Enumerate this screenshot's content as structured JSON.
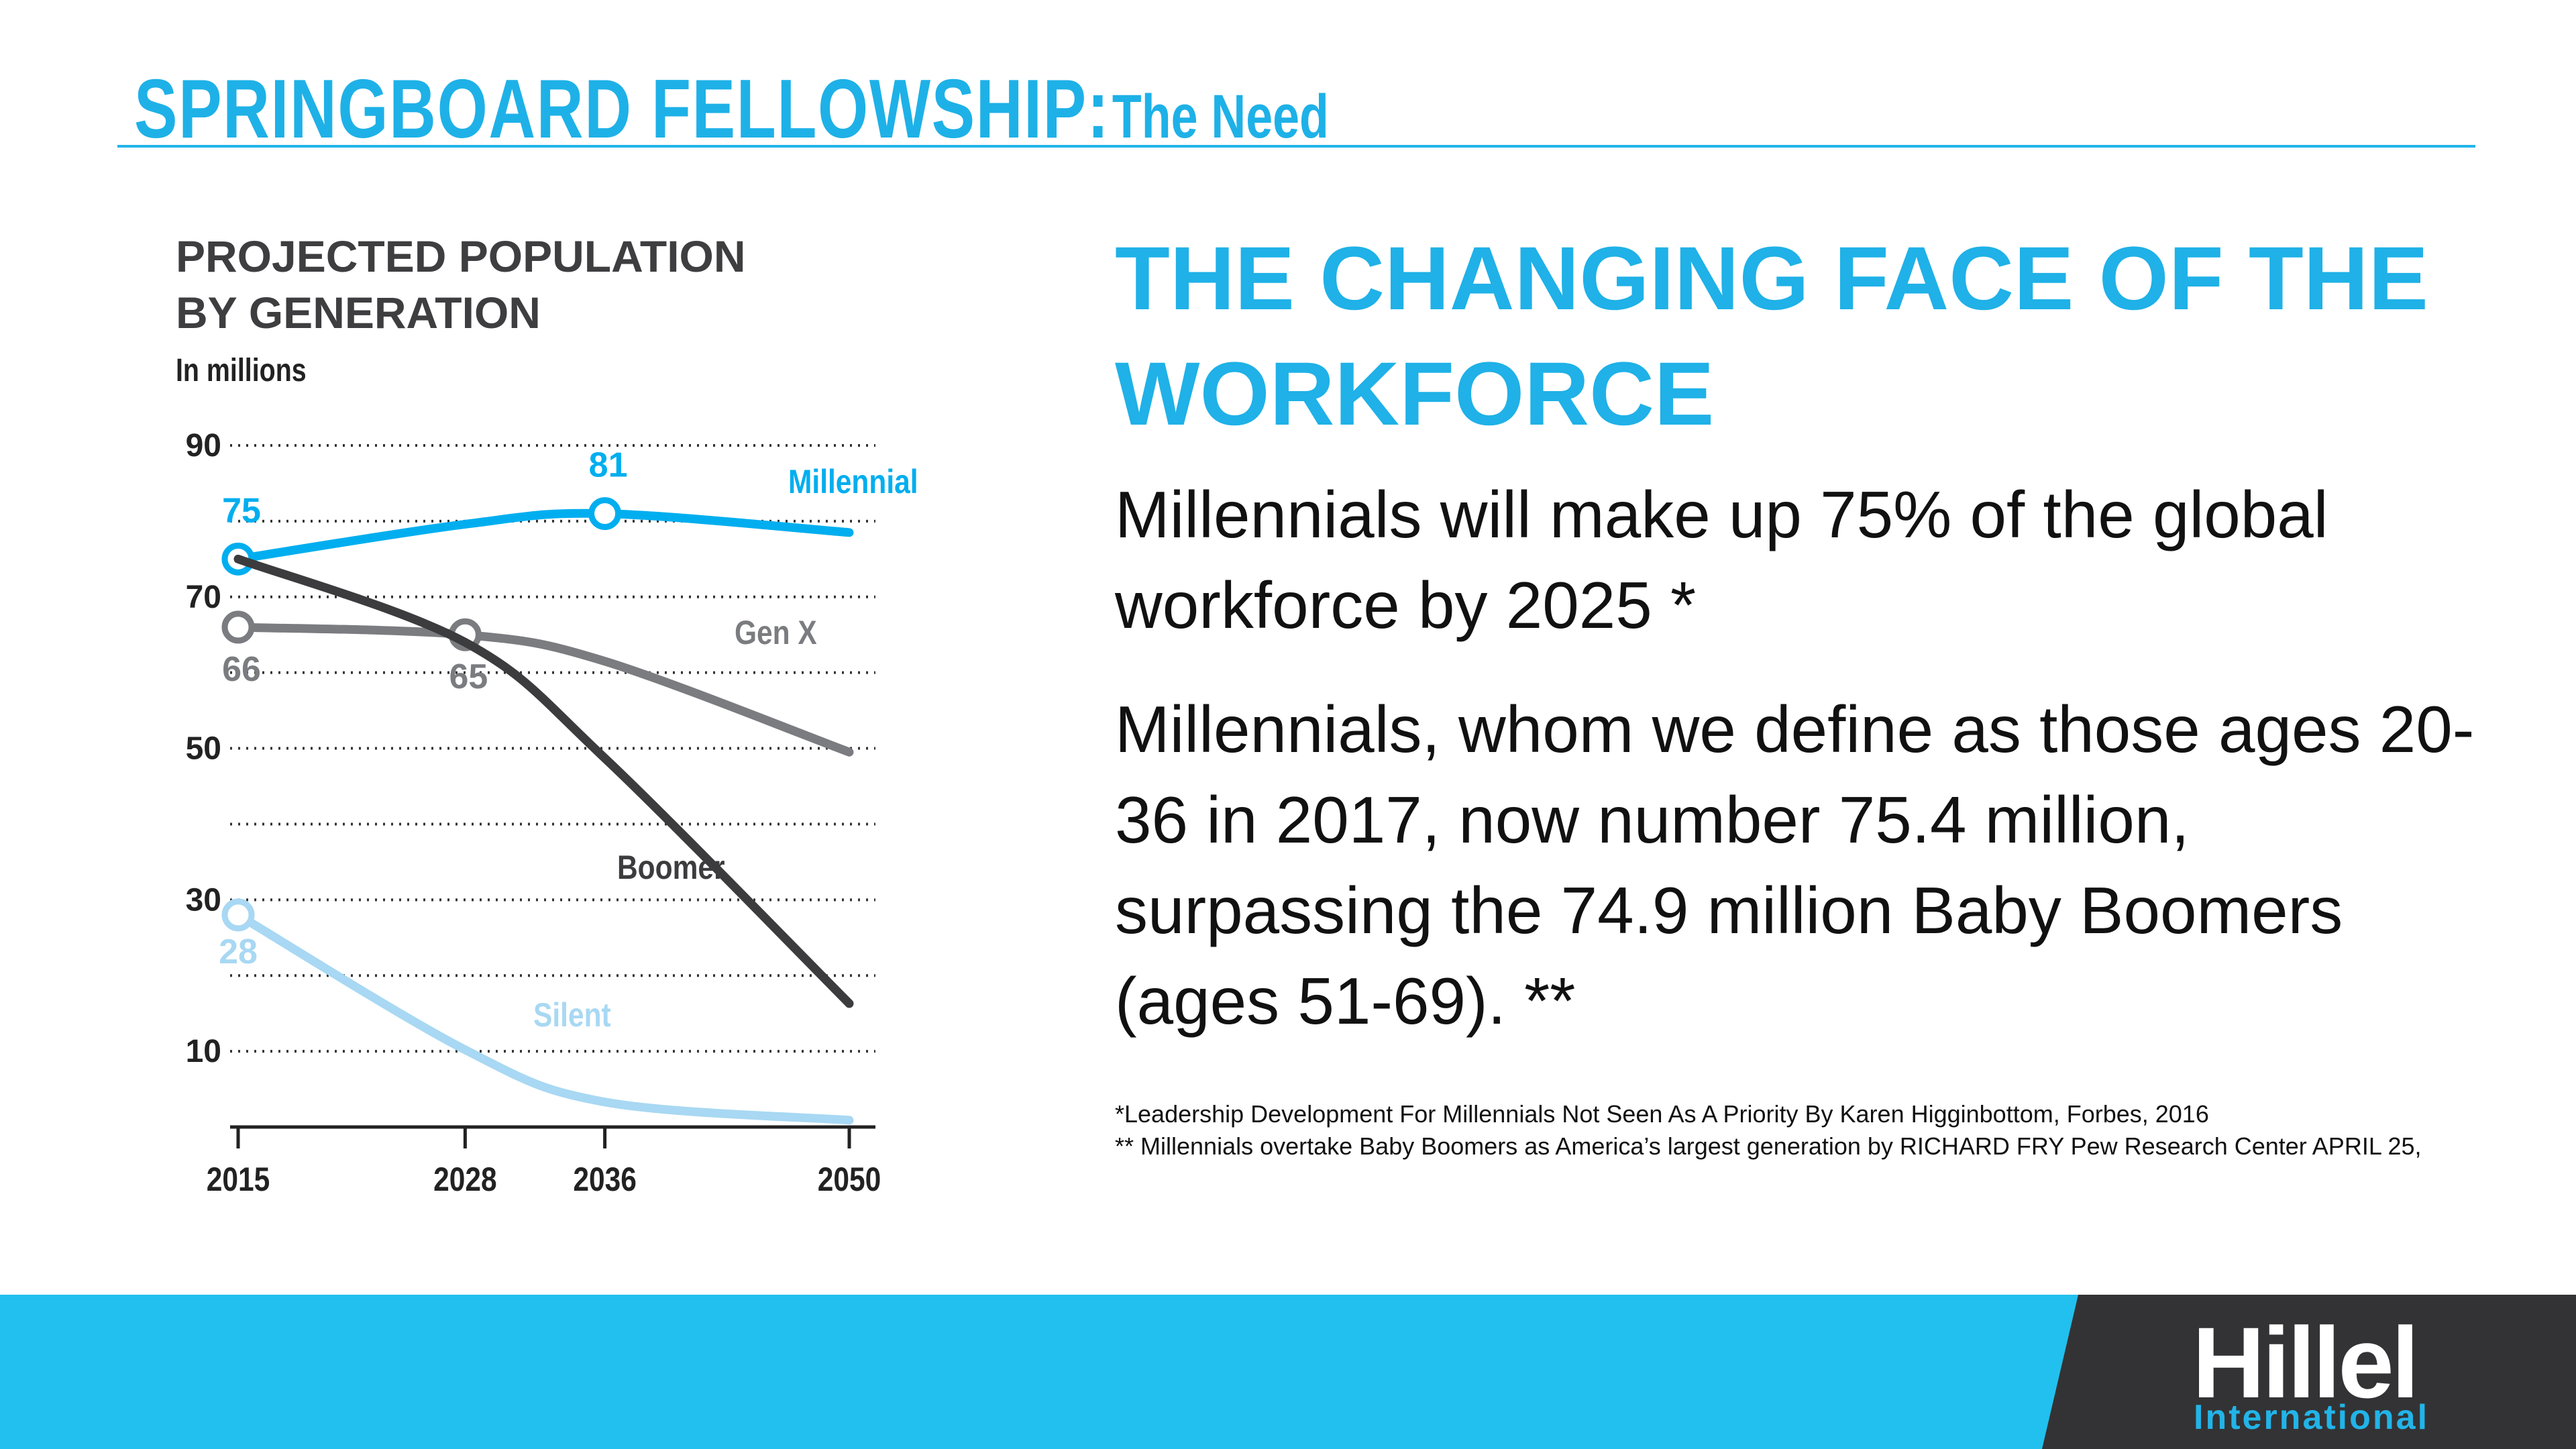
{
  "slide_title": {
    "main": "SPRINGBOARD FELLOWSHIP:",
    "sub": "The Need"
  },
  "chart_data": {
    "type": "line",
    "title": "PROJECTED POPULATION BY GENERATION",
    "title_lines": [
      "PROJECTED POPULATION",
      "BY GENERATION"
    ],
    "ylabel": "In millions",
    "x": [
      2015,
      2028,
      2036,
      2050
    ],
    "x_ticks": [
      "2015",
      "2028",
      "2036",
      "2050"
    ],
    "y_ticks": [
      "90",
      "70",
      "50",
      "30",
      "10"
    ],
    "ylim": [
      0,
      90
    ],
    "grid": "dotted horizontal every 10",
    "legend": "inline labels",
    "series": [
      {
        "name": "Millennial",
        "color": "#00aeef",
        "values": [
          75,
          79.6,
          81,
          78.5
        ],
        "markers": [
          0,
          2
        ],
        "point_labels": [
          {
            "i": 0,
            "text": "75"
          },
          {
            "i": 2,
            "text": "81"
          }
        ]
      },
      {
        "name": "Gen X",
        "color": "#7b7c80",
        "values": [
          66,
          65,
          61.5,
          49.5
        ],
        "markers": [
          0,
          1
        ],
        "point_labels": [
          {
            "i": 0,
            "text": "66"
          },
          {
            "i": 1,
            "text": "65"
          }
        ]
      },
      {
        "name": "Boomer",
        "color": "#3c3c3e",
        "values": [
          75,
          64,
          48.7,
          16.3
        ],
        "markers": [],
        "point_labels": []
      },
      {
        "name": "Silent",
        "color": "#a8d8f3",
        "values": [
          28,
          10.2,
          3.3,
          0.9
        ],
        "markers": [
          0
        ],
        "point_labels": [
          {
            "i": 0,
            "text": "28"
          }
        ]
      }
    ]
  },
  "heading": "THE CHANGING FACE OF THE WORKFORCE",
  "paragraphs": [
    "Millennials will make up 75% of the global workforce by 2025 *",
    "Millennials, whom we define as those ages 20-36 in 2017, now number 75.4 million, surpassing the 74.9 million Baby Boomers (ages 51-69). **"
  ],
  "footnotes": [
    "*Leadership Development For Millennials Not Seen As A Priority By Karen Higginbottom, Forbes, 2016",
    "** Millennials overtake Baby Boomers as America’s largest generation by  RICHARD FRY Pew Research Center APRIL 25,"
  ],
  "logo": {
    "name": "Hillel",
    "sub": "International"
  },
  "colors": {
    "brand_blue": "#22c0ef",
    "dark": "#333335"
  }
}
